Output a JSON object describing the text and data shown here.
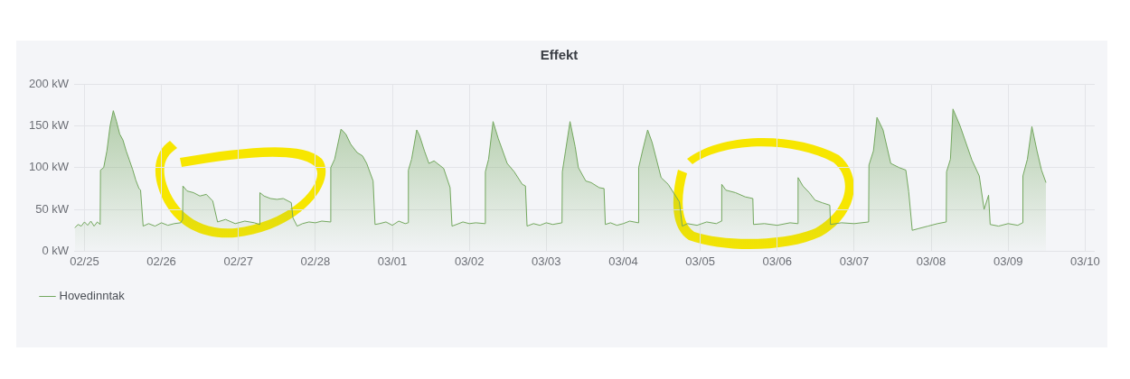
{
  "chart_data": {
    "type": "area",
    "title": "Effekt",
    "x": [
      "--02-24T21:00",
      "--02-24T22:00",
      "--02-24T23:00",
      "--02-25T00:00",
      "--02-25T01:00",
      "--02-25T02:00",
      "--02-25T03:00",
      "--02-25T04:00",
      "--02-25T04:54",
      "--02-25T05:00",
      "--02-25T06:00",
      "--02-25T07:00",
      "--02-25T08:00",
      "--02-25T09:00",
      "--02-25T10:00",
      "--02-25T11:00",
      "--02-25T12:00",
      "--02-25T13:00",
      "--02-25T14:00",
      "--02-25T15:00",
      "--02-25T16:00",
      "--02-25T17:00",
      "--02-25T17:30",
      "--02-25T18:18",
      "--02-25T20:00",
      "--02-25T22:00",
      "--02-26T00:00",
      "--02-26T02:00",
      "--02-26T04:00",
      "--02-26T06:00",
      "--02-26T06:36",
      "--02-26T06:42",
      "--02-26T08:00",
      "--02-26T10:00",
      "--02-26T12:00",
      "--02-26T14:00",
      "--02-26T16:00",
      "--02-26T17:30",
      "--02-26T20:00",
      "--02-26T23:00",
      "--02-27T02:00",
      "--02-27T05:00",
      "--02-27T06:36",
      "--02-27T06:42",
      "--02-27T08:00",
      "--02-27T10:00",
      "--02-27T12:00",
      "--02-27T14:00",
      "--02-27T16:30",
      "--02-27T17:00",
      "--02-27T18:18",
      "--02-27T20:00",
      "--02-27T22:00",
      "--02-28T00:00",
      "--02-28T02:00",
      "--02-28T04:42",
      "--02-28T04:48",
      "--02-28T06:00",
      "--02-28T08:00",
      "--02-28T09:30",
      "--02-28T11:00",
      "--02-28T13:00",
      "--02-28T14:42",
      "--02-28T16:00",
      "--02-28T18:00",
      "--02-28T18:36",
      "--02-28T20:00",
      "--02-28T22:00",
      "--03-01T00:00",
      "--03-01T02:00",
      "--03-01T04:00",
      "--03-01T04:54",
      "--03-01T05:00",
      "--03-01T06:00",
      "--03-01T07:36",
      "--03-01T08:30",
      "--03-01T10:00",
      "--03-01T11:24",
      "--03-01T13:00",
      "--03-01T16:00",
      "--03-01T18:00",
      "--03-01T18:36",
      "--03-01T20:00",
      "--03-01T22:00",
      "--03-02T00:00",
      "--03-02T02:00",
      "--03-02T04:54",
      "--03-02T05:00",
      "--03-02T06:00",
      "--03-02T07:24",
      "--03-02T09:00",
      "--03-02T11:48",
      "--03-02T14:00",
      "--03-02T16:30",
      "--03-02T17:30",
      "--03-02T18:00",
      "--03-02T20:00",
      "--03-02T22:00",
      "--03-03T00:00",
      "--03-03T02:00",
      "--03-03T04:54",
      "--03-03T05:00",
      "--03-03T06:00",
      "--03-03T07:24",
      "--03-03T09:00",
      "--03-03T10:00",
      "--03-03T12:18",
      "--03-03T14:00",
      "--03-03T16:30",
      "--03-03T18:00",
      "--03-03T18:24",
      "--03-03T20:00",
      "--03-03T22:00",
      "--03-04T00:00",
      "--03-04T02:00",
      "--03-04T04:42",
      "--03-04T04:48",
      "--03-04T06:00",
      "--03-04T07:36",
      "--03-04T09:00",
      "--03-04T11:48",
      "--03-04T14:00",
      "--03-04T17:30",
      "--03-04T18:24",
      "--03-04T20:00",
      "--03-04T23:00",
      "--03-05T02:00",
      "--03-05T05:00",
      "--03-05T06:36",
      "--03-05T06:42",
      "--03-05T08:00",
      "--03-05T11:00",
      "--03-05T14:00",
      "--03-05T16:24",
      "--03-05T16:36",
      "--03-05T20:00",
      "--03-06T00:00",
      "--03-06T04:00",
      "--03-06T06:24",
      "--03-06T06:30",
      "--03-06T08:00",
      "--03-06T10:00",
      "--03-06T11:48",
      "--03-06T14:00",
      "--03-06T16:24",
      "--03-06T16:36",
      "--03-06T20:00",
      "--03-07T00:00",
      "--03-07T04:30",
      "--03-07T04:36",
      "--03-07T06:00",
      "--03-07T07:06",
      "--03-07T09:00",
      "--03-07T11:24",
      "--03-07T14:00",
      "--03-07T16:06",
      "--03-07T17:00",
      "--03-07T18:06",
      "--03-07T20:00",
      "--03-07T23:00",
      "--03-08T02:00",
      "--03-08T04:42",
      "--03-08T04:48",
      "--03-08T06:00",
      "--03-08T06:48",
      "--03-08T09:00",
      "--03-08T12:42",
      "--03-08T15:00",
      "--03-08T16:30",
      "--03-08T17:54",
      "--03-08T18:24",
      "--03-08T21:00",
      "--03-09T00:00",
      "--03-09T03:00",
      "--03-09T04:30",
      "--03-09T04:36",
      "--03-09T06:00",
      "--03-09T07:24",
      "--03-09T09:00",
      "--03-09T10:24",
      "--03-09T11:48"
    ],
    "series": [
      {
        "name": "Hovedinntak",
        "color": "#73a75e",
        "values": [
          28,
          32,
          30,
          35,
          31,
          36,
          30,
          35,
          32,
          97,
          100,
          120,
          150,
          168,
          155,
          140,
          133,
          120,
          109,
          98,
          85,
          75,
          73,
          30,
          33,
          30,
          34,
          31,
          33,
          34,
          38,
          78,
          72,
          70,
          66,
          68,
          60,
          35,
          38,
          33,
          36,
          34,
          32,
          70,
          66,
          63,
          62,
          63,
          58,
          40,
          30,
          33,
          35,
          34,
          36,
          35,
          100,
          110,
          146,
          140,
          128,
          118,
          114,
          105,
          84,
          32,
          33,
          35,
          31,
          36,
          33,
          34,
          97,
          110,
          145,
          138,
          120,
          105,
          108,
          99,
          76,
          30,
          32,
          35,
          33,
          34,
          33,
          95,
          110,
          155,
          135,
          105,
          95,
          80,
          78,
          30,
          33,
          31,
          34,
          32,
          34,
          95,
          120,
          155,
          125,
          100,
          84,
          82,
          76,
          75,
          32,
          34,
          31,
          33,
          36,
          34,
          100,
          120,
          145,
          130,
          88,
          80,
          59,
          30,
          33,
          31,
          35,
          33,
          36,
          80,
          73,
          70,
          65,
          63,
          32,
          33,
          31,
          34,
          33,
          88,
          78,
          70,
          61,
          58,
          55,
          32,
          34,
          33,
          35,
          103,
          120,
          160,
          145,
          105,
          100,
          97,
          71,
          25,
          27,
          30,
          33,
          35,
          95,
          110,
          170,
          150,
          109,
          90,
          50,
          67,
          32,
          30,
          33,
          31,
          34,
          90,
          110,
          149,
          120,
          97,
          82
        ]
      }
    ],
    "xlim": [
      "--02-24T20:48",
      "--03-10T03:00"
    ],
    "xticks": [
      {
        "value": "--02-25",
        "label": "02/25"
      },
      {
        "value": "--02-26",
        "label": "02/26"
      },
      {
        "value": "--02-27",
        "label": "02/27"
      },
      {
        "value": "--02-28",
        "label": "02/28"
      },
      {
        "value": "--03-01",
        "label": "03/01"
      },
      {
        "value": "--03-02",
        "label": "03/02"
      },
      {
        "value": "--03-03",
        "label": "03/03"
      },
      {
        "value": "--03-04",
        "label": "03/04"
      },
      {
        "value": "--03-05",
        "label": "03/05"
      },
      {
        "value": "--03-06",
        "label": "03/06"
      },
      {
        "value": "--03-07",
        "label": "03/07"
      },
      {
        "value": "--03-08",
        "label": "03/08"
      },
      {
        "value": "--03-09",
        "label": "03/09"
      },
      {
        "value": "--03-10",
        "label": "03/10"
      }
    ],
    "ylim": [
      0,
      200
    ],
    "yticks": [
      {
        "value": 0,
        "label": "0 kW"
      },
      {
        "value": 50,
        "label": "50 kW"
      },
      {
        "value": 100,
        "label": "100 kW"
      },
      {
        "value": 150,
        "label": "150 kW"
      },
      {
        "value": 200,
        "label": "200 kW"
      }
    ],
    "grid": true,
    "legend": "bottom left",
    "marker": "none",
    "line_style": "solid"
  }
}
